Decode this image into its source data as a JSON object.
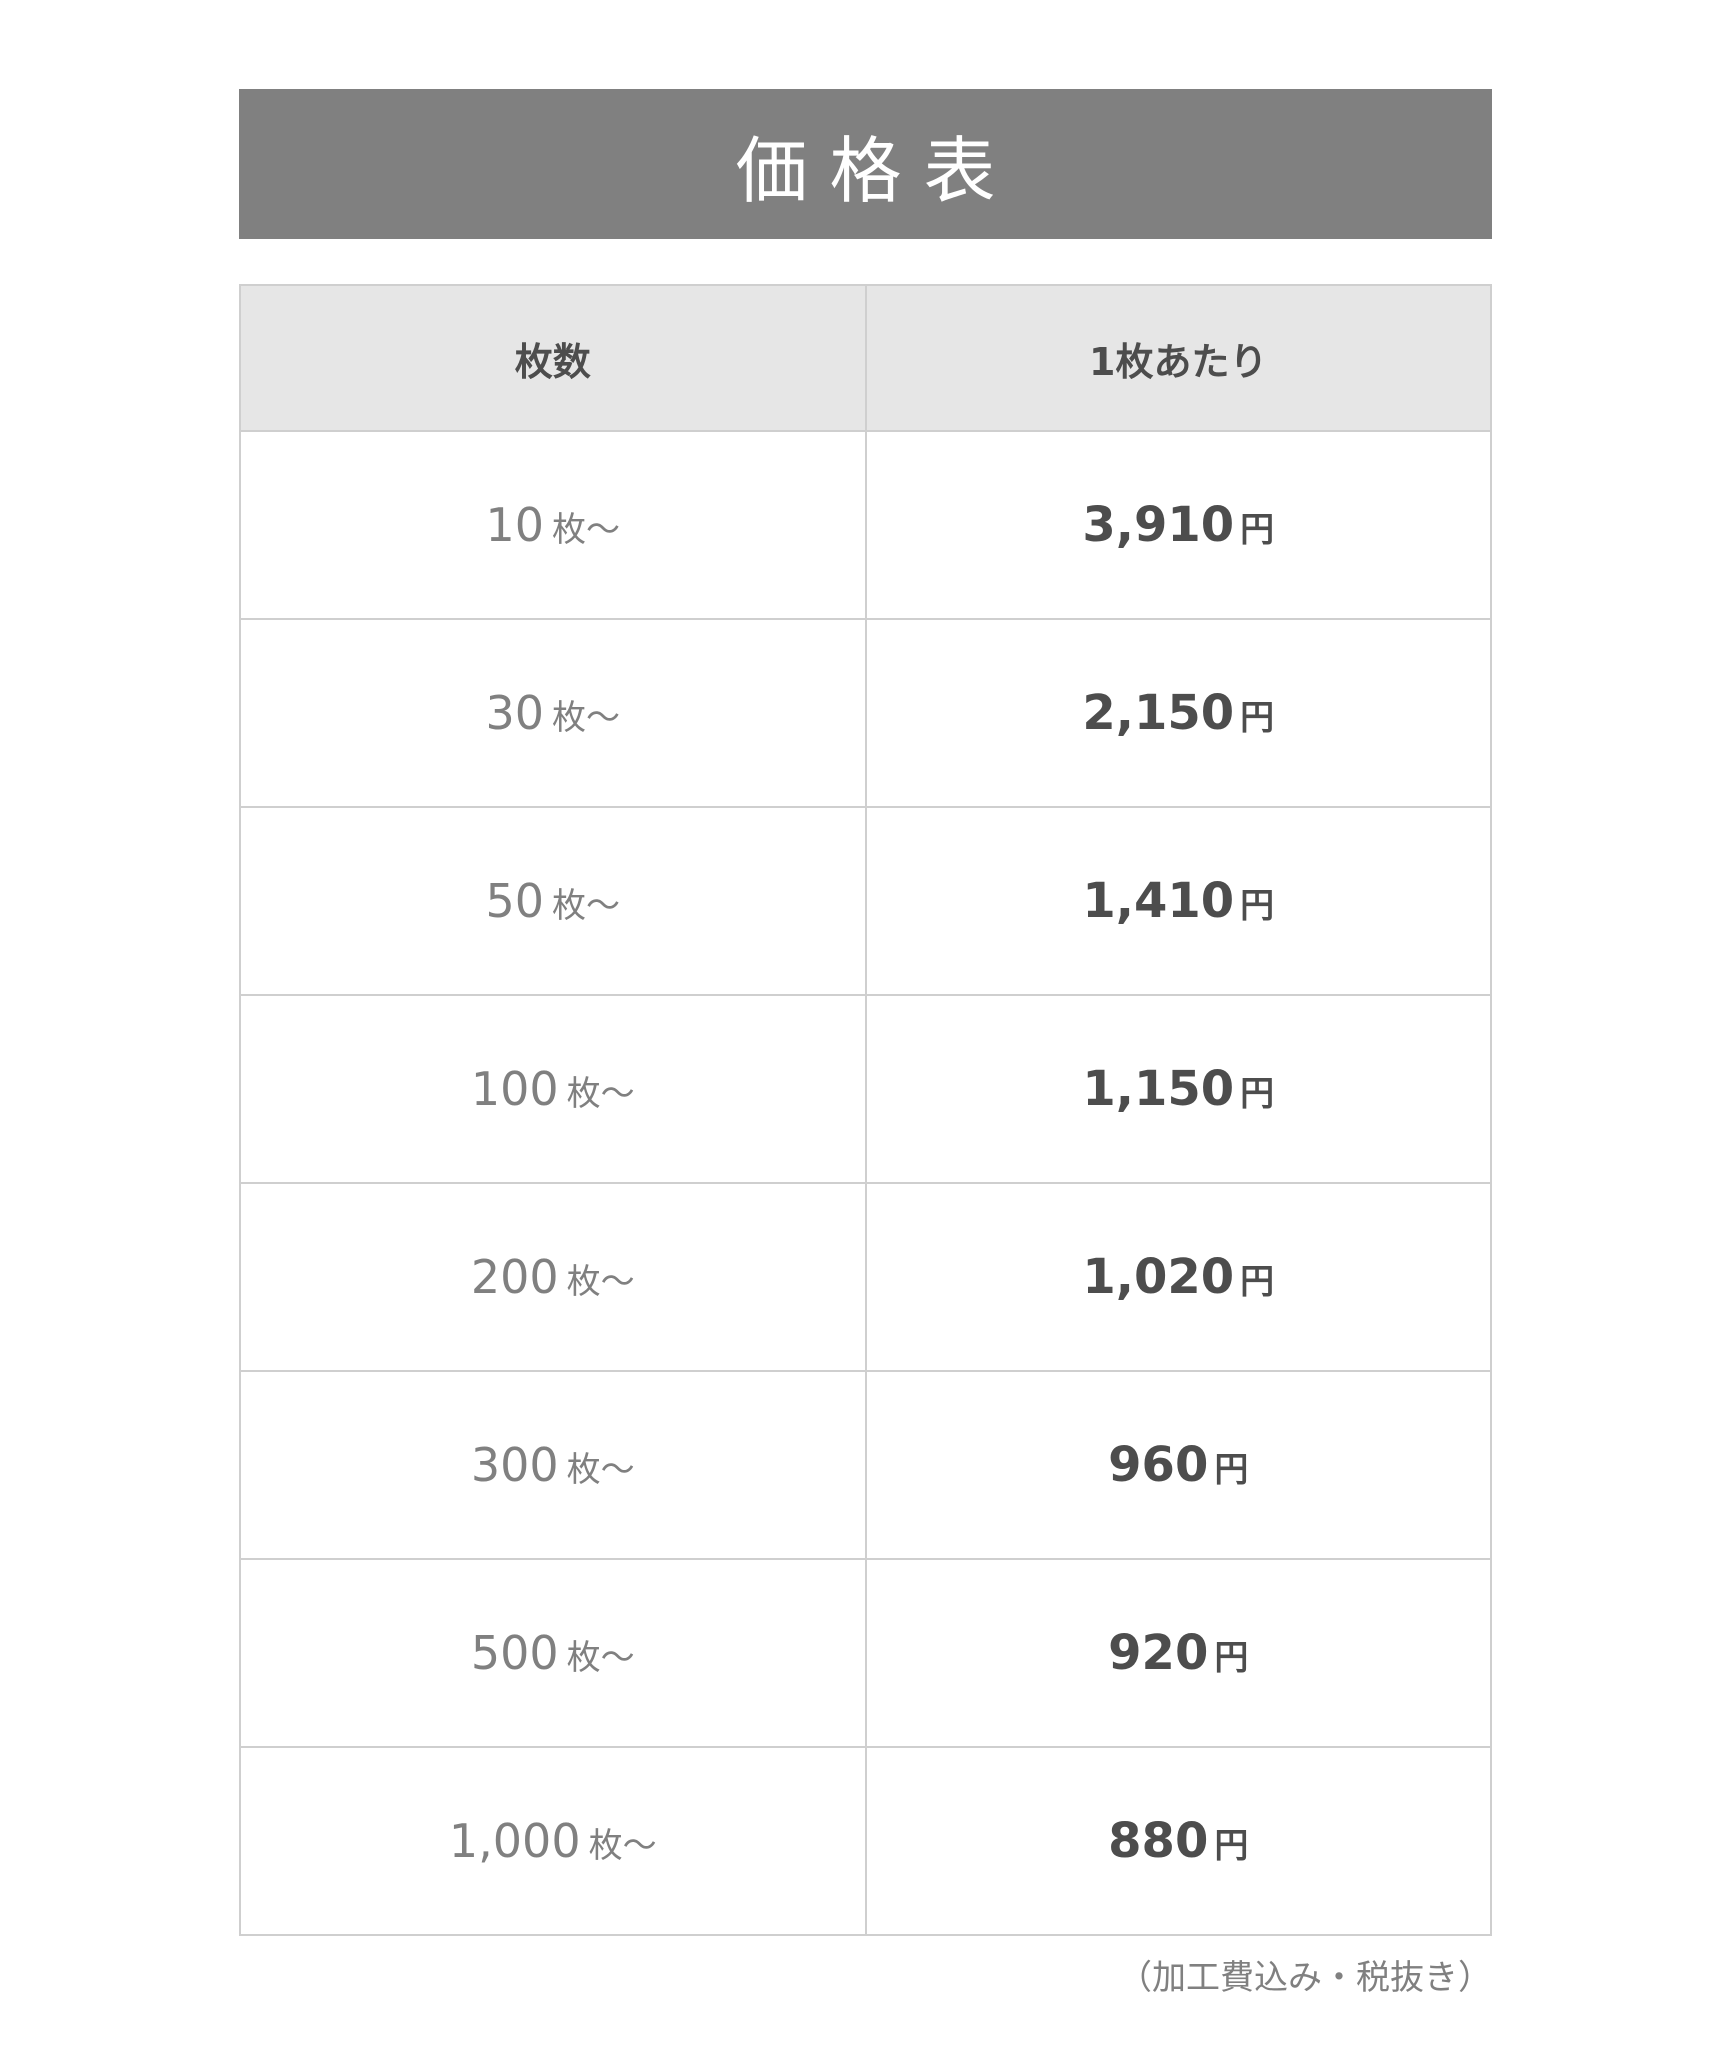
{
  "title": "価格表",
  "table": {
    "headers": [
      "枚数",
      "1枚あたり"
    ],
    "qty_unit": "枚〜",
    "price_unit": "円",
    "rows": [
      {
        "qty": "10",
        "price": "3,910"
      },
      {
        "qty": "30",
        "price": "2,150"
      },
      {
        "qty": "50",
        "price": "1,410"
      },
      {
        "qty": "100",
        "price": "1,150"
      },
      {
        "qty": "200",
        "price": "1,020"
      },
      {
        "qty": "300",
        "price": "960"
      },
      {
        "qty": "500",
        "price": "920"
      },
      {
        "qty": "1,000",
        "price": "880"
      }
    ]
  },
  "note": "（加工費込み・税抜き）"
}
